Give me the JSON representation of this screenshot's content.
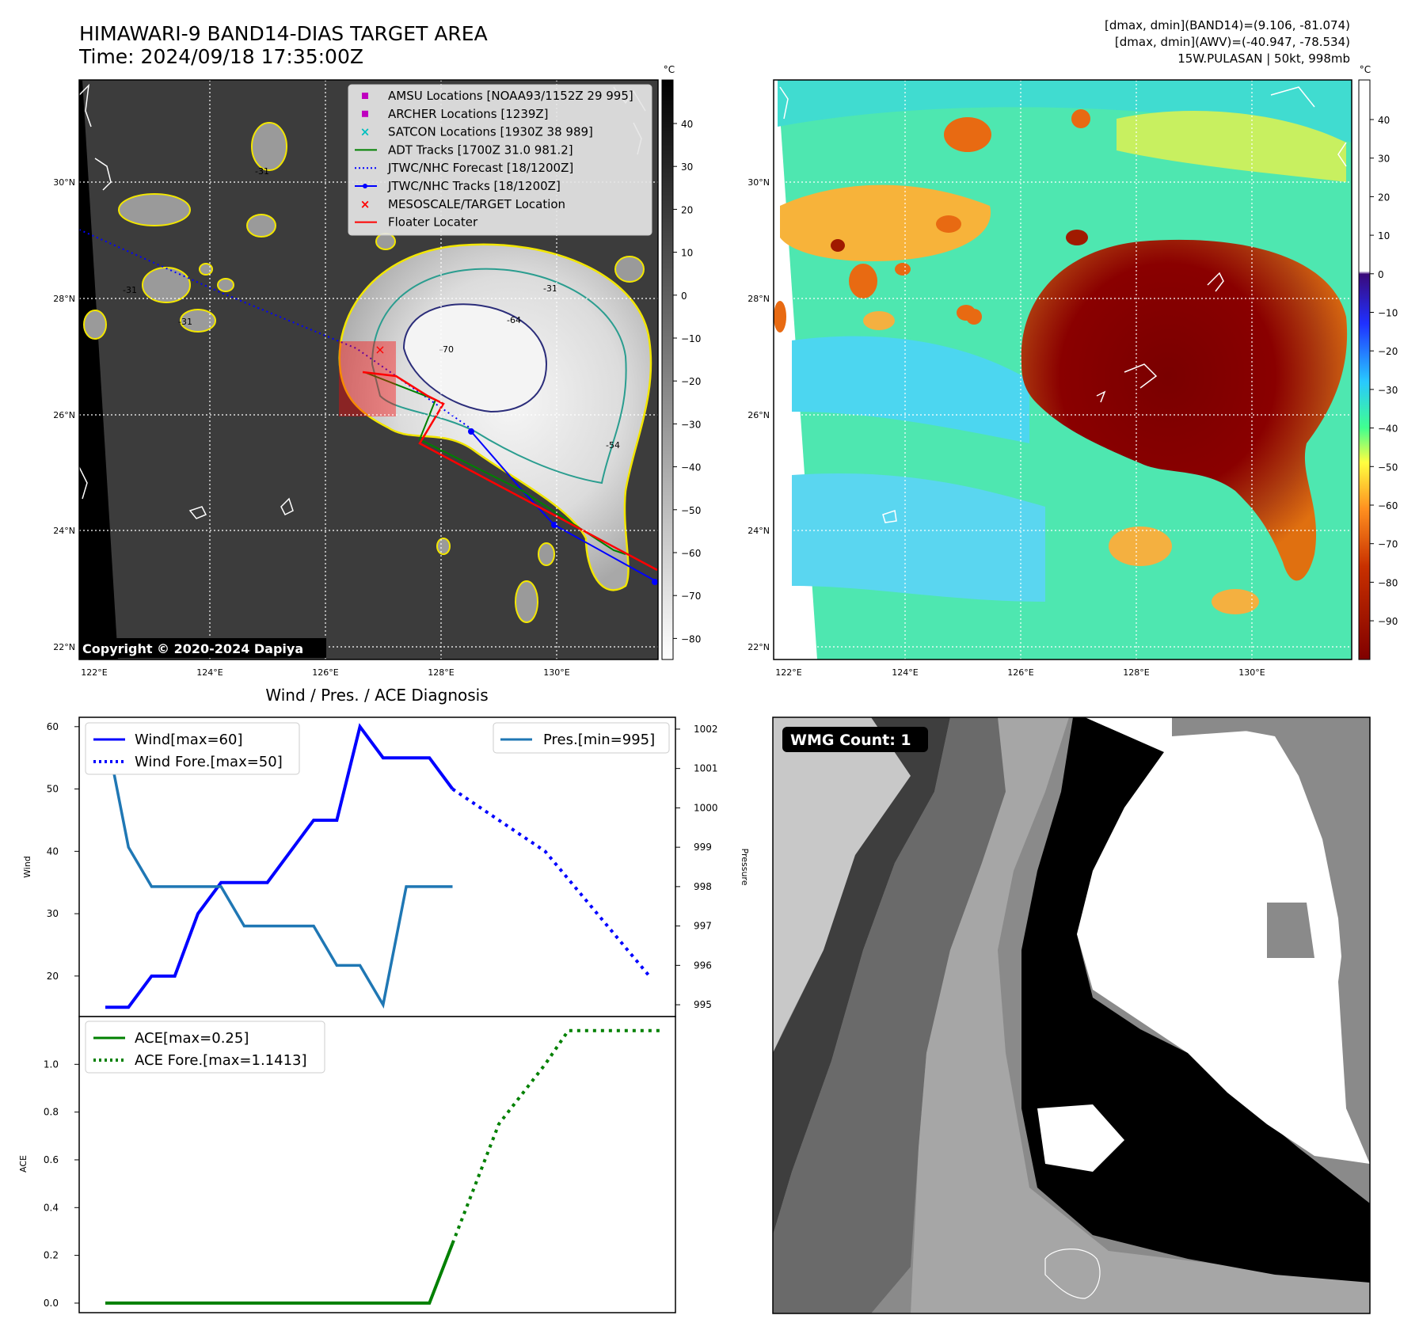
{
  "header": {
    "title_line1": "HIMAWARI-9 BAND14-DIAS TARGET AREA",
    "title_line2": "Time: 2024/09/18 17:35:00Z",
    "right_line1": "[dmax, dmin](BAND14)=(9.106, -81.074)",
    "right_line2": "[dmax, dmin](AWV)=(-40.947, -78.534)",
    "right_line3": "15W.PULASAN | 50kt, 998mb"
  },
  "map_left": {
    "copyright": "Copyright © 2020-2024 Dapiya",
    "lat_ticks": [
      "30°N",
      "28°N",
      "26°N",
      "24°N",
      "22°N"
    ],
    "lon_ticks": [
      "122°E",
      "124°E",
      "126°E",
      "128°E",
      "130°E"
    ],
    "contour_labels": [
      "-31",
      "-31",
      "-31",
      "-31",
      "-64",
      "-70",
      "-54"
    ],
    "colorbar": {
      "unit": "°C",
      "ticks": [
        "40",
        "30",
        "20",
        "10",
        "0",
        "−10",
        "−20",
        "−30",
        "−40",
        "−50",
        "−60",
        "−70",
        "−80"
      ]
    },
    "legend": [
      {
        "label": "AMSU Locations [NOAA93/1152Z 29 995]",
        "color": "#bf00bf",
        "marker": "square"
      },
      {
        "label": "ARCHER Locations [1239Z]",
        "color": "#bf00bf",
        "marker": "square"
      },
      {
        "label": "SATCON Locations [1930Z 38 989]",
        "color": "#00bfbf",
        "marker": "x"
      },
      {
        "label": "ADT Tracks [1700Z 31.0 981.2]",
        "color": "#008000",
        "marker": "line"
      },
      {
        "label": "JTWC/NHC Forecast [18/1200Z]",
        "color": "#0000ff",
        "marker": "dotted"
      },
      {
        "label": "JTWC/NHC Tracks [18/1200Z]",
        "color": "#0000ff",
        "marker": "line-dot"
      },
      {
        "label": "MESOSCALE/TARGET Location",
        "color": "#ff0000",
        "marker": "x"
      },
      {
        "label": "Floater Locater",
        "color": "#ff0000",
        "marker": "line"
      }
    ]
  },
  "map_right": {
    "lat_ticks": [
      "30°N",
      "28°N",
      "26°N",
      "24°N",
      "22°N"
    ],
    "lon_ticks": [
      "122°E",
      "124°E",
      "126°E",
      "128°E",
      "130°E"
    ],
    "colorbar": {
      "unit": "°C",
      "ticks": [
        "40",
        "30",
        "20",
        "10",
        "0",
        "−10",
        "−20",
        "−30",
        "−40",
        "−50",
        "−60",
        "−70",
        "−80",
        "−90"
      ]
    }
  },
  "wmg": {
    "label": "WMG Count: 1"
  },
  "chart_data": [
    {
      "type": "line",
      "title": "Wind / Pres. / ACE Diagnosis",
      "xlabel": "",
      "ylabel": "Wind",
      "ylim": [
        13.5,
        61.5
      ],
      "yticks": [
        20,
        30,
        40,
        50,
        60
      ],
      "x": [
        0,
        1,
        2,
        3,
        4,
        5,
        6,
        7,
        8,
        9,
        10,
        11,
        12,
        13,
        14,
        15,
        16,
        17,
        18,
        19,
        20,
        21,
        22,
        23,
        24
      ],
      "series": [
        {
          "name": "Wind[max=60]",
          "color": "#0000ff",
          "style": "solid",
          "x": [
            0,
            1,
            2,
            3,
            4,
            5,
            6,
            7,
            8,
            9,
            10,
            11,
            12,
            13,
            14,
            15
          ],
          "values": [
            15,
            15,
            20,
            20,
            30,
            35,
            35,
            35,
            40,
            45,
            45,
            60,
            55,
            55,
            55,
            50
          ]
        },
        {
          "name": "Wind Fore.[max=50]",
          "color": "#0000ff",
          "style": "dotted",
          "x": [
            15,
            19,
            23.5
          ],
          "values": [
            50,
            40,
            20
          ]
        }
      ],
      "y2": {
        "ylabel": "Pressure",
        "ylim": [
          994.7,
          1002.3
        ],
        "yticks": [
          995,
          996,
          997,
          998,
          999,
          1000,
          1001,
          1002
        ],
        "series": [
          {
            "name": "Pres.[min=995]",
            "color": "#1f77b4",
            "style": "solid",
            "x": [
              0,
              1,
              2,
              3,
              4,
              5,
              6,
              7,
              8,
              9,
              10,
              11,
              12,
              13,
              14,
              15
            ],
            "values": [
              1002,
              999,
              998,
              998,
              998,
              998,
              997,
              997,
              997,
              997,
              996,
              996,
              995,
              998,
              998,
              998
            ]
          }
        ]
      }
    },
    {
      "type": "line",
      "xlabel": "",
      "ylabel": "ACE",
      "ylim": [
        -0.04,
        1.2
      ],
      "yticks": [
        "0.0",
        "0.2",
        "0.4",
        "0.6",
        "0.8",
        "1.0"
      ],
      "series": [
        {
          "name": "ACE[max=0.25]",
          "color": "#008000",
          "style": "solid",
          "x": [
            0,
            14,
            15
          ],
          "values": [
            0,
            0,
            0.25
          ]
        },
        {
          "name": "ACE Fore.[max=1.1413]",
          "color": "#008000",
          "style": "dotted",
          "x": [
            15,
            17,
            19,
            20,
            24
          ],
          "values": [
            0.25,
            0.75,
            1.0,
            1.1413,
            1.1413
          ]
        }
      ]
    }
  ]
}
